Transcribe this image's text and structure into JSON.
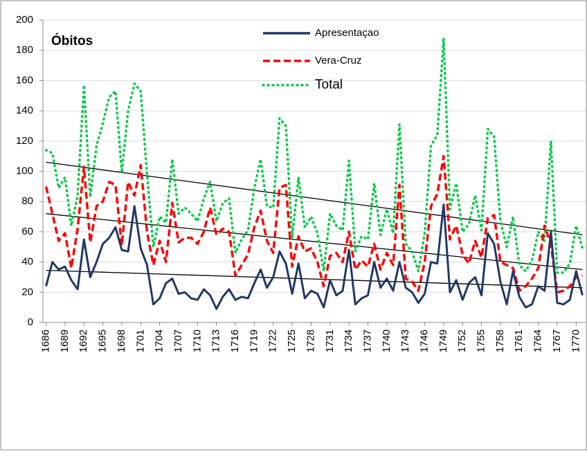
{
  "chart_data": {
    "type": "line",
    "title": "Óbitos",
    "x": [
      1686,
      1687,
      1688,
      1689,
      1690,
      1691,
      1692,
      1693,
      1694,
      1695,
      1696,
      1697,
      1698,
      1699,
      1700,
      1701,
      1702,
      1703,
      1704,
      1705,
      1706,
      1707,
      1708,
      1709,
      1710,
      1711,
      1712,
      1713,
      1714,
      1715,
      1716,
      1717,
      1718,
      1719,
      1720,
      1721,
      1722,
      1723,
      1724,
      1725,
      1726,
      1727,
      1728,
      1729,
      1730,
      1731,
      1732,
      1733,
      1734,
      1735,
      1736,
      1737,
      1738,
      1739,
      1740,
      1741,
      1742,
      1743,
      1744,
      1745,
      1746,
      1747,
      1748,
      1749,
      1750,
      1751,
      1752,
      1753,
      1754,
      1755,
      1756,
      1757,
      1758,
      1759,
      1760,
      1761,
      1762,
      1763,
      1764,
      1765,
      1766,
      1767,
      1768,
      1769,
      1770,
      1771
    ],
    "series": [
      {
        "name": "Apresentaçao",
        "color": "#1f3864",
        "dash": "solid",
        "values": [
          24,
          40,
          35,
          37,
          28,
          22,
          55,
          30,
          40,
          52,
          56,
          63,
          48,
          47,
          77,
          49,
          38,
          12,
          16,
          26,
          29,
          19,
          20,
          16,
          15,
          22,
          18,
          9,
          17,
          22,
          15,
          17,
          16,
          26,
          35,
          23,
          30,
          47,
          39,
          19,
          39,
          16,
          21,
          19,
          10,
          28,
          18,
          21,
          48,
          12,
          16,
          18,
          40,
          23,
          29,
          21,
          40,
          23,
          20,
          13,
          19,
          40,
          39,
          78,
          20,
          28,
          15,
          26,
          30,
          18,
          59,
          52,
          27,
          12,
          34,
          17,
          10,
          12,
          24,
          21,
          60,
          13,
          12,
          15,
          34,
          18
        ]
      },
      {
        "name": "Vera-Cruz",
        "color": "#ff0000",
        "dash": "dashed",
        "values": [
          90,
          72,
          54,
          59,
          36,
          62,
          103,
          53,
          77,
          80,
          93,
          91,
          51,
          93,
          84,
          104,
          60,
          38,
          54,
          40,
          79,
          53,
          56,
          56,
          52,
          60,
          76,
          58,
          62,
          60,
          31,
          38,
          45,
          63,
          74,
          54,
          46,
          89,
          91,
          37,
          57,
          47,
          49,
          40,
          24,
          44,
          46,
          40,
          60,
          35,
          41,
          37,
          52,
          35,
          46,
          38,
          91,
          29,
          27,
          21,
          40,
          77,
          85,
          110,
          55,
          64,
          45,
          39,
          54,
          43,
          69,
          71,
          40,
          38,
          36,
          21,
          24,
          29,
          36,
          64,
          52,
          20,
          21,
          24,
          30,
          31
        ]
      },
      {
        "name": "Total",
        "color": "#00cc44",
        "dash": "dotted",
        "values": [
          114,
          112,
          89,
          96,
          64,
          84,
          157,
          83,
          117,
          132,
          149,
          153,
          99,
          140,
          158,
          153,
          98,
          50,
          70,
          66,
          108,
          72,
          76,
          72,
          67,
          82,
          93,
          67,
          79,
          82,
          46,
          55,
          61,
          89,
          108,
          77,
          76,
          135,
          130,
          56,
          96,
          63,
          70,
          59,
          34,
          72,
          64,
          61,
          107,
          47,
          57,
          55,
          92,
          58,
          75,
          59,
          131,
          52,
          47,
          34,
          59,
          117,
          124,
          188,
          75,
          92,
          60,
          65,
          84,
          61,
          128,
          123,
          67,
          50,
          70,
          38,
          34,
          41,
          60,
          54,
          120,
          33,
          33,
          39,
          64,
          49
        ]
      }
    ],
    "trendlines": [
      {
        "x": [
          1686,
          1771
        ],
        "values": [
          106,
          58
        ]
      },
      {
        "x": [
          1686,
          1771
        ],
        "values": [
          72,
          35
        ]
      },
      {
        "x": [
          1686,
          1771
        ],
        "values": [
          34.5,
          23
        ]
      }
    ],
    "xlim": [
      1685.5,
      1771.5
    ],
    "xticks": [
      1686,
      1689,
      1692,
      1695,
      1698,
      1701,
      1704,
      1707,
      1710,
      1713,
      1716,
      1719,
      1722,
      1725,
      1728,
      1731,
      1734,
      1737,
      1740,
      1743,
      1746,
      1749,
      1752,
      1755,
      1758,
      1761,
      1764,
      1767,
      1770
    ],
    "ylim": [
      0,
      200
    ],
    "yticks": [
      0,
      20,
      40,
      60,
      80,
      100,
      120,
      140,
      160,
      180,
      200
    ],
    "grid": true
  }
}
